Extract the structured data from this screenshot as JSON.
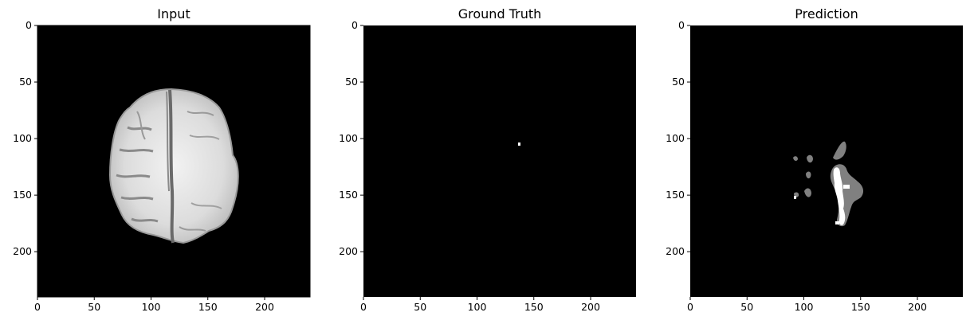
{
  "panels": [
    {
      "title": "Input"
    },
    {
      "title": "Ground Truth"
    },
    {
      "title": "Prediction"
    }
  ],
  "axes": {
    "x_ticks": [
      "0",
      "50",
      "100",
      "150",
      "200"
    ],
    "y_ticks": [
      "0",
      "50",
      "100",
      "150",
      "200"
    ],
    "x_range": [
      0,
      240
    ],
    "y_range": [
      0,
      240
    ]
  },
  "colors": {
    "background": "#000000",
    "foreground": "#ffffff",
    "class_gray": "#808080"
  }
}
